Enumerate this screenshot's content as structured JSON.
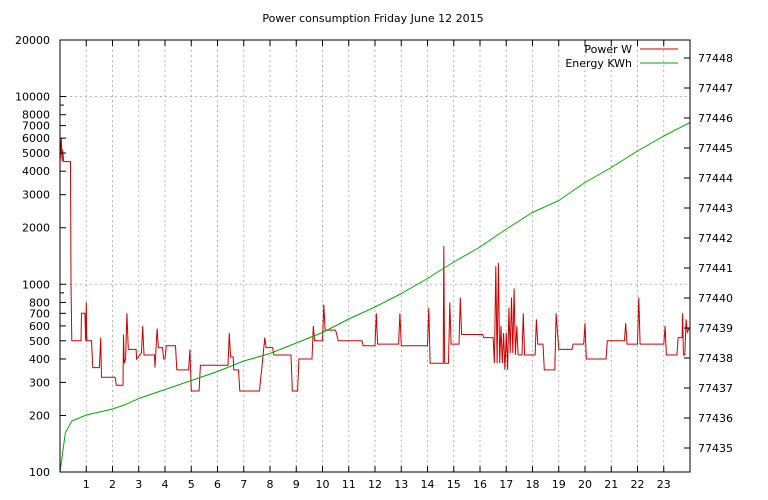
{
  "chart_data": {
    "type": "line",
    "title": "Power consumption Friday June 12 2015",
    "x_ticks": [
      1,
      2,
      3,
      4,
      5,
      6,
      7,
      8,
      9,
      10,
      11,
      12,
      13,
      14,
      15,
      16,
      17,
      18,
      19,
      20,
      21,
      22,
      23
    ],
    "x_range": [
      0,
      24
    ],
    "y_left": {
      "scale": "log",
      "range": [
        100,
        20000
      ],
      "ticks": [
        100,
        200,
        300,
        400,
        500,
        600,
        700,
        800,
        1000,
        2000,
        3000,
        4000,
        5000,
        6000,
        7000,
        8000,
        10000,
        20000
      ]
    },
    "y_right": {
      "range": [
        77434.2,
        77448.6
      ],
      "ticks": [
        77435,
        77436,
        77437,
        77438,
        77439,
        77440,
        77441,
        77442,
        77443,
        77444,
        77445,
        77446,
        77447,
        77448
      ]
    },
    "grid": true,
    "legend_position": "top-right",
    "series": [
      {
        "name": "Power W",
        "color": "#cc0000",
        "axis": "left",
        "points": [
          [
            0.0,
            4500
          ],
          [
            0.05,
            6000
          ],
          [
            0.08,
            4500
          ],
          [
            0.1,
            5200
          ],
          [
            0.14,
            4500
          ],
          [
            0.4,
            4500
          ],
          [
            0.42,
            1000
          ],
          [
            0.45,
            500
          ],
          [
            0.8,
            500
          ],
          [
            0.82,
            700
          ],
          [
            0.95,
            700
          ],
          [
            0.98,
            500
          ],
          [
            1.0,
            800
          ],
          [
            1.02,
            500
          ],
          [
            1.2,
            500
          ],
          [
            1.25,
            360
          ],
          [
            1.5,
            360
          ],
          [
            1.55,
            520
          ],
          [
            1.58,
            320
          ],
          [
            2.1,
            320
          ],
          [
            2.15,
            290
          ],
          [
            2.4,
            290
          ],
          [
            2.42,
            540
          ],
          [
            2.45,
            380
          ],
          [
            2.5,
            400
          ],
          [
            2.55,
            700
          ],
          [
            2.6,
            450
          ],
          [
            2.9,
            450
          ],
          [
            2.92,
            400
          ],
          [
            3.1,
            430
          ],
          [
            3.15,
            600
          ],
          [
            3.2,
            420
          ],
          [
            3.6,
            420
          ],
          [
            3.62,
            360
          ],
          [
            3.7,
            580
          ],
          [
            3.75,
            460
          ],
          [
            3.9,
            460
          ],
          [
            3.95,
            400
          ],
          [
            4.0,
            400
          ],
          [
            4.05,
            470
          ],
          [
            4.4,
            470
          ],
          [
            4.45,
            350
          ],
          [
            4.9,
            350
          ],
          [
            4.95,
            450
          ],
          [
            5.0,
            270
          ],
          [
            5.3,
            270
          ],
          [
            5.35,
            370
          ],
          [
            6.4,
            370
          ],
          [
            6.45,
            550
          ],
          [
            6.5,
            410
          ],
          [
            6.6,
            410
          ],
          [
            6.62,
            350
          ],
          [
            6.8,
            350
          ],
          [
            6.85,
            270
          ],
          [
            7.6,
            270
          ],
          [
            7.62,
            290
          ],
          [
            7.7,
            370
          ],
          [
            7.8,
            520
          ],
          [
            7.85,
            460
          ],
          [
            8.1,
            460
          ],
          [
            8.15,
            420
          ],
          [
            8.8,
            420
          ],
          [
            8.85,
            270
          ],
          [
            9.05,
            270
          ],
          [
            9.1,
            400
          ],
          [
            9.6,
            400
          ],
          [
            9.65,
            600
          ],
          [
            9.7,
            500
          ],
          [
            10.0,
            500
          ],
          [
            10.05,
            780
          ],
          [
            10.1,
            570
          ],
          [
            10.5,
            570
          ],
          [
            10.6,
            500
          ],
          [
            11.5,
            500
          ],
          [
            11.55,
            470
          ],
          [
            12.0,
            470
          ],
          [
            12.05,
            700
          ],
          [
            12.1,
            480
          ],
          [
            12.9,
            480
          ],
          [
            12.95,
            700
          ],
          [
            13.0,
            470
          ],
          [
            14.0,
            470
          ],
          [
            14.05,
            750
          ],
          [
            14.1,
            380
          ],
          [
            14.6,
            380
          ],
          [
            14.62,
            1600
          ],
          [
            14.65,
            380
          ],
          [
            14.8,
            380
          ],
          [
            14.85,
            800
          ],
          [
            14.9,
            480
          ],
          [
            15.2,
            480
          ],
          [
            15.25,
            850
          ],
          [
            15.3,
            540
          ],
          [
            16.1,
            540
          ],
          [
            16.15,
            520
          ],
          [
            16.5,
            520
          ],
          [
            16.55,
            380
          ],
          [
            16.6,
            1250
          ],
          [
            16.65,
            380
          ],
          [
            16.7,
            1300
          ],
          [
            16.75,
            380
          ],
          [
            16.8,
            600
          ],
          [
            16.85,
            380
          ],
          [
            16.9,
            550
          ],
          [
            16.95,
            350
          ],
          [
            17.0,
            550
          ],
          [
            17.05,
            350
          ],
          [
            17.1,
            750
          ],
          [
            17.15,
            430
          ],
          [
            17.2,
            850
          ],
          [
            17.25,
            430
          ],
          [
            17.3,
            950
          ],
          [
            17.35,
            420
          ],
          [
            17.4,
            600
          ],
          [
            17.45,
            420
          ],
          [
            17.6,
            420
          ],
          [
            17.65,
            700
          ],
          [
            17.7,
            420
          ],
          [
            18.1,
            420
          ],
          [
            18.15,
            650
          ],
          [
            18.2,
            480
          ],
          [
            18.4,
            480
          ],
          [
            18.45,
            350
          ],
          [
            18.85,
            350
          ],
          [
            18.9,
            700
          ],
          [
            19.0,
            450
          ],
          [
            19.5,
            450
          ],
          [
            19.55,
            480
          ],
          [
            19.95,
            480
          ],
          [
            20.0,
            620
          ],
          [
            20.05,
            400
          ],
          [
            20.8,
            400
          ],
          [
            20.85,
            500
          ],
          [
            21.5,
            500
          ],
          [
            21.55,
            620
          ],
          [
            21.6,
            480
          ],
          [
            22.0,
            480
          ],
          [
            22.05,
            850
          ],
          [
            22.1,
            480
          ],
          [
            23.0,
            480
          ],
          [
            23.05,
            600
          ],
          [
            23.1,
            420
          ],
          [
            23.5,
            420
          ],
          [
            23.55,
            520
          ],
          [
            23.7,
            520
          ],
          [
            23.72,
            700
          ],
          [
            23.75,
            420
          ],
          [
            23.8,
            420
          ],
          [
            23.85,
            650
          ],
          [
            23.9,
            550
          ],
          [
            23.95,
            580
          ],
          [
            24.0,
            580
          ]
        ]
      },
      {
        "name": "Energy KWh",
        "color": "#00aa00",
        "axis": "right",
        "points": [
          [
            0.0,
            77434.2
          ],
          [
            0.2,
            77435.5
          ],
          [
            0.45,
            77435.9
          ],
          [
            1.0,
            77436.1
          ],
          [
            1.5,
            77436.2
          ],
          [
            2.0,
            77436.3
          ],
          [
            2.5,
            77436.45
          ],
          [
            3.0,
            77436.65
          ],
          [
            4.0,
            77436.95
          ],
          [
            5.0,
            77437.25
          ],
          [
            6.0,
            77437.55
          ],
          [
            7.0,
            77437.9
          ],
          [
            8.0,
            77438.15
          ],
          [
            9.0,
            77438.5
          ],
          [
            10.0,
            77438.85
          ],
          [
            11.0,
            77439.3
          ],
          [
            12.0,
            77439.7
          ],
          [
            13.0,
            77440.15
          ],
          [
            14.0,
            77440.65
          ],
          [
            15.0,
            77441.2
          ],
          [
            16.0,
            77441.7
          ],
          [
            17.0,
            77442.3
          ],
          [
            18.0,
            77442.85
          ],
          [
            19.0,
            77443.25
          ],
          [
            20.0,
            77443.85
          ],
          [
            21.0,
            77444.35
          ],
          [
            22.0,
            77444.9
          ],
          [
            23.0,
            77445.4
          ],
          [
            24.0,
            77445.85
          ]
        ]
      }
    ]
  }
}
